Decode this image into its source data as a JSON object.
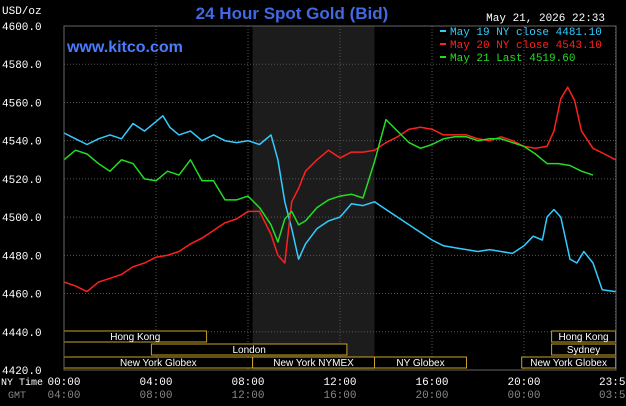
{
  "header": {
    "title": "24 Hour Spot Gold (Bid)",
    "unit": "USD/oz",
    "timestamp": "May 21, 2026 22:33",
    "site": "www.kitco.com"
  },
  "chart_data": {
    "type": "line",
    "title": "24 Hour Spot Gold (Bid)",
    "ylabel": "USD/oz",
    "xlabel": "",
    "ylim": [
      4420,
      4600
    ],
    "xlim": [
      0,
      24
    ],
    "y_ticks": [
      "4420.0",
      "4440.0",
      "4460.0",
      "4480.0",
      "4500.0",
      "4520.0",
      "4540.0",
      "4560.0",
      "4580.0",
      "4600.0"
    ],
    "x_ticks_ny": [
      "00:00",
      "04:00",
      "08:00",
      "12:00",
      "16:00",
      "20:00",
      "23:59"
    ],
    "x_ticks_gmt": [
      "04:00",
      "08:00",
      "12:00",
      "16:00",
      "20:00",
      "00:00",
      "03:59"
    ],
    "x_tick_hours": [
      0,
      4,
      8,
      12,
      16,
      20,
      23.98
    ],
    "row_label_ny": "NY Time",
    "row_label_gmt": "GMT",
    "grid": true,
    "legend_position": "top-right",
    "highlight_band": [
      8.2,
      13.5
    ],
    "series": [
      {
        "name": "May 19 NY close 4481.10",
        "color": "#33CCFF",
        "x": [
          0,
          0.5,
          1,
          1.5,
          2,
          2.5,
          3,
          3.5,
          4,
          4.3,
          4.6,
          5,
          5.5,
          6,
          6.5,
          7,
          7.5,
          8,
          8.5,
          9,
          9.3,
          9.6,
          9.9,
          10.2,
          10.5,
          11,
          11.5,
          12,
          12.5,
          13,
          13.5,
          14,
          14.5,
          15,
          15.5,
          16,
          16.5,
          17,
          17.5,
          18,
          18.5,
          19,
          19.5,
          20,
          20.4,
          20.8,
          21,
          21.3,
          21.6,
          22,
          22.3,
          22.6,
          23,
          23.4,
          23.98
        ],
        "values": [
          4544,
          4541,
          4538,
          4541,
          4543,
          4541,
          4549,
          4545,
          4550,
          4553,
          4547,
          4543,
          4545,
          4540,
          4543,
          4540,
          4539,
          4540,
          4538,
          4543,
          4530,
          4508,
          4494,
          4478,
          4486,
          4494,
          4498,
          4500,
          4507,
          4506,
          4508,
          4504,
          4500,
          4496,
          4492,
          4488,
          4485,
          4484,
          4483,
          4482,
          4483,
          4482,
          4481,
          4485,
          4490,
          4488,
          4500,
          4504,
          4500,
          4478,
          4476,
          4482,
          4476,
          4462,
          4461
        ]
      },
      {
        "name": "May 20 NY close 4543.10",
        "color": "#FF2020",
        "x": [
          0,
          0.5,
          1,
          1.5,
          2,
          2.5,
          3,
          3.5,
          4,
          4.5,
          5,
          5.5,
          6,
          6.5,
          7,
          7.5,
          8,
          8.5,
          9,
          9.3,
          9.6,
          9.9,
          10.2,
          10.5,
          11,
          11.5,
          12,
          12.5,
          13,
          13.5,
          14,
          14.5,
          15,
          15.5,
          16,
          16.5,
          17,
          17.5,
          18,
          18.5,
          19,
          19.5,
          20,
          20.5,
          21,
          21.3,
          21.6,
          21.9,
          22.2,
          22.5,
          23,
          23.5,
          23.98
        ],
        "values": [
          4466,
          4464,
          4461,
          4466,
          4468,
          4470,
          4474,
          4476,
          4479,
          4480,
          4482,
          4486,
          4489,
          4493,
          4497,
          4499,
          4503,
          4503,
          4491,
          4480,
          4476,
          4508,
          4515,
          4524,
          4530,
          4535,
          4531,
          4534,
          4534,
          4535,
          4539,
          4542,
          4546,
          4547,
          4546,
          4543,
          4543,
          4543,
          4541,
          4540,
          4542,
          4540,
          4537,
          4536,
          4537,
          4545,
          4562,
          4568,
          4561,
          4545,
          4536,
          4533,
          4530
        ]
      },
      {
        "name": "May 21 Last 4519.60",
        "color": "#22DD22",
        "x": [
          0,
          0.5,
          1,
          1.5,
          2,
          2.5,
          3,
          3.5,
          4,
          4.5,
          5,
          5.5,
          6,
          6.5,
          7,
          7.5,
          8,
          8.5,
          9,
          9.3,
          9.6,
          9.9,
          10.2,
          10.5,
          11,
          11.5,
          12,
          12.5,
          13,
          13.5,
          14,
          14.5,
          15,
          15.5,
          16,
          16.5,
          17,
          17.5,
          18,
          18.5,
          19,
          19.5,
          20,
          20.5,
          21,
          21.5,
          22,
          22.5,
          23
        ],
        "values": [
          4530,
          4535,
          4533,
          4528,
          4524,
          4530,
          4528,
          4520,
          4519,
          4524,
          4522,
          4530,
          4519,
          4519,
          4509,
          4509,
          4511,
          4505,
          4496,
          4487,
          4499,
          4503,
          4496,
          4498,
          4505,
          4509,
          4511,
          4512,
          4510,
          4529,
          4551,
          4545,
          4539,
          4536,
          4538,
          4541,
          4542,
          4542,
          4540,
          4541,
          4541,
          4539,
          4537,
          4533,
          4528,
          4528,
          4527,
          4524,
          4522
        ]
      }
    ],
    "sessions": [
      {
        "label": "Hong Kong",
        "row": 0,
        "start": 0,
        "end": 6.2
      },
      {
        "label": "Hong Kong",
        "row": 0,
        "start": 21.2,
        "end": 23.98
      },
      {
        "label": "London",
        "row": 1,
        "start": 3.8,
        "end": 12.3
      },
      {
        "label": "Sydney",
        "row": 1,
        "start": 21.2,
        "end": 23.98
      },
      {
        "label": "New York Globex",
        "row": 2,
        "start": 0,
        "end": 8.2
      },
      {
        "label": "New York NYMEX",
        "row": 2,
        "start": 8.2,
        "end": 13.5
      },
      {
        "label": "NY Globex",
        "row": 2,
        "start": 13.5,
        "end": 17.5
      },
      {
        "label": "New York Globex",
        "row": 2,
        "start": 19.9,
        "end": 23.98
      }
    ]
  }
}
